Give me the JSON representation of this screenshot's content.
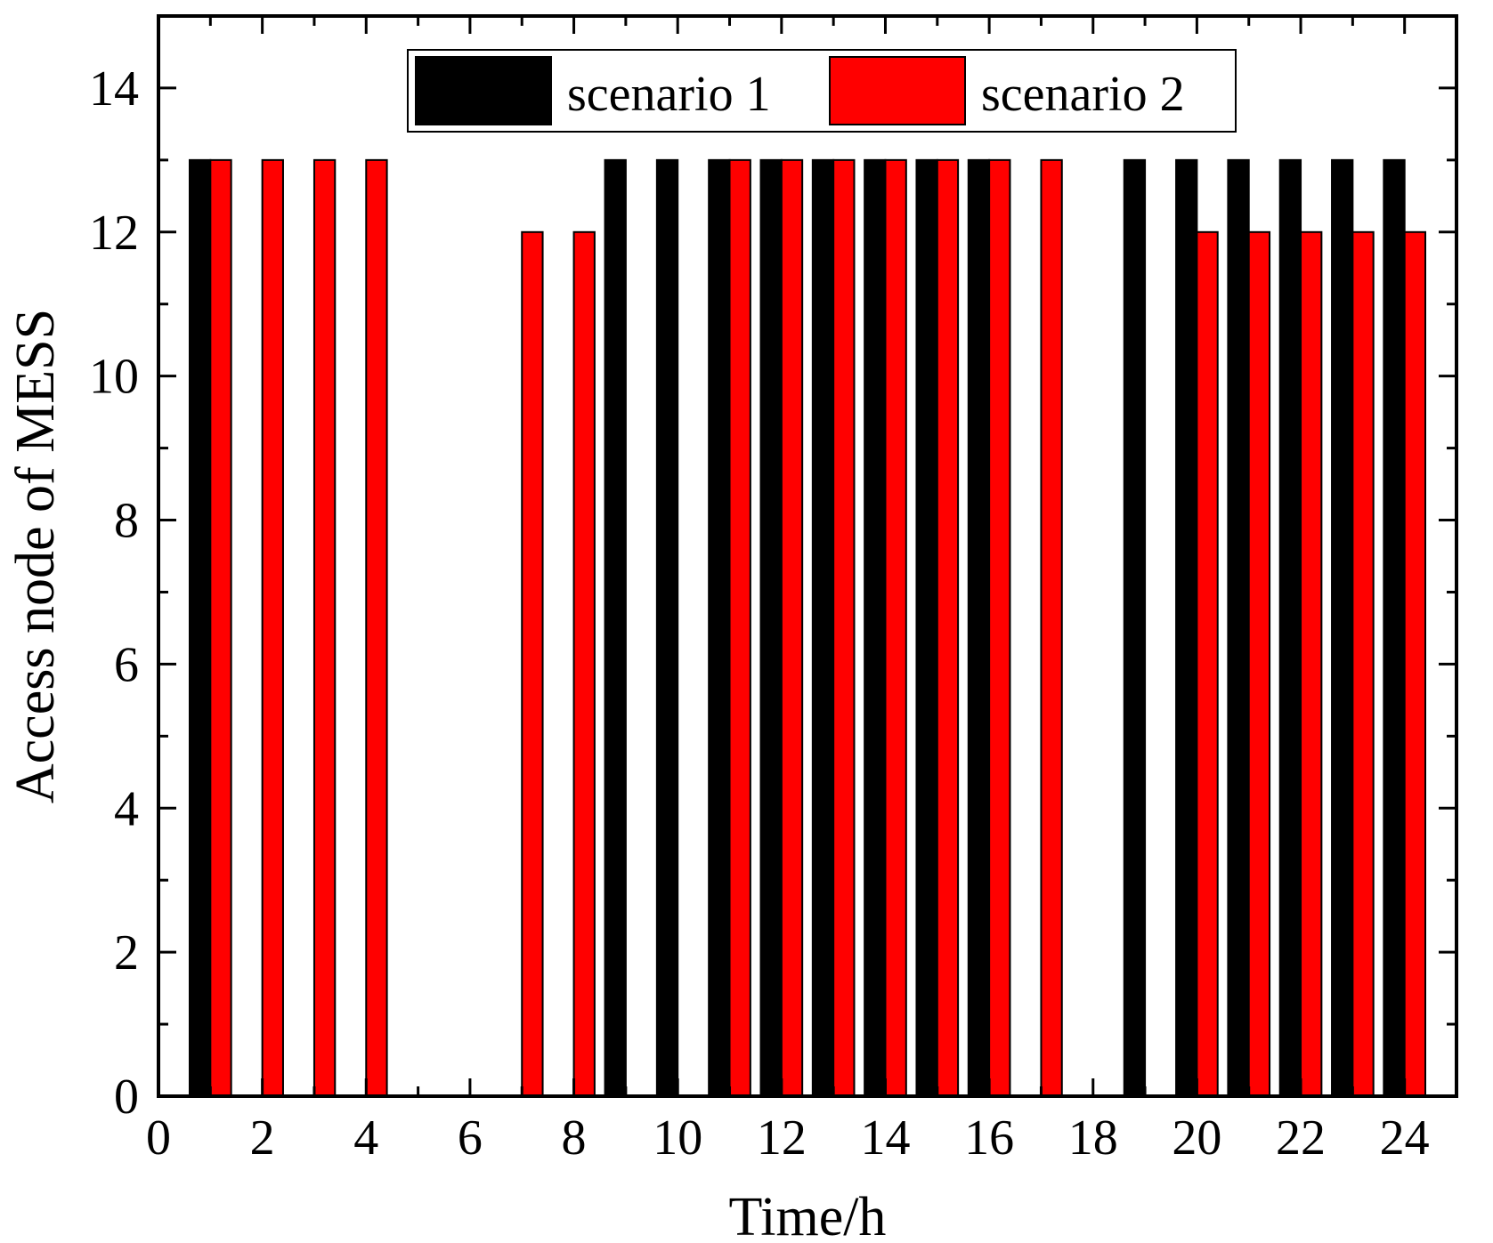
{
  "chart_data": {
    "type": "bar",
    "xlabel": "Time/h",
    "ylabel": "Access node of MESS",
    "xlim": [
      0,
      25
    ],
    "ylim": [
      0,
      15
    ],
    "x_ticks": [
      "0",
      "2",
      "4",
      "6",
      "8",
      "10",
      "12",
      "14",
      "16",
      "18",
      "20",
      "22",
      "24"
    ],
    "y_ticks": [
      "0",
      "2",
      "4",
      "6",
      "8",
      "10",
      "12",
      "14"
    ],
    "categories": [
      1,
      2,
      3,
      4,
      5,
      6,
      7,
      8,
      9,
      10,
      11,
      12,
      13,
      14,
      15,
      16,
      17,
      18,
      19,
      20,
      21,
      22,
      23,
      24
    ],
    "series": [
      {
        "name": "scenario 1",
        "color": "#000000",
        "values": [
          13,
          0,
          0,
          0,
          0,
          0,
          0,
          0,
          13,
          13,
          13,
          13,
          13,
          13,
          13,
          13,
          0,
          0,
          13,
          13,
          13,
          13,
          13,
          13
        ]
      },
      {
        "name": "scenario 2",
        "color": "#ff0000",
        "values": [
          13,
          13,
          13,
          13,
          0,
          0,
          12,
          12,
          0,
          0,
          13,
          13,
          13,
          13,
          13,
          13,
          13,
          0,
          0,
          12,
          12,
          12,
          12,
          12
        ]
      }
    ],
    "legend": "top-center",
    "grid": false
  }
}
